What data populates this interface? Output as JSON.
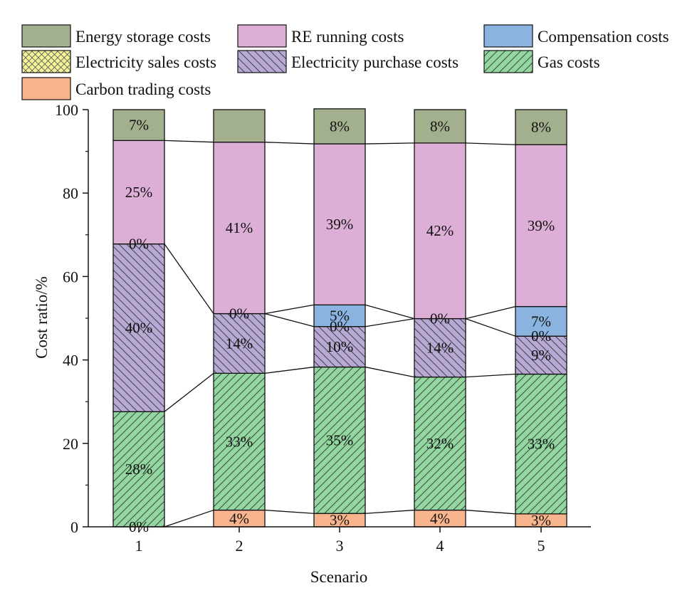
{
  "chart_data": {
    "type": "stacked-bar",
    "xlabel": "Scenario",
    "ylabel": "Cost ratio/%",
    "ylim": [
      0,
      100
    ],
    "yticks": [
      0,
      20,
      40,
      60,
      80,
      100
    ],
    "categories": [
      "1",
      "2",
      "3",
      "4",
      "5"
    ],
    "legend": {
      "placement": "top",
      "order": [
        "Energy storage costs",
        "RE running costs",
        "Compensation costs",
        "Electricity sales costs",
        "Electricity purchase costs",
        "Gas costs",
        "Carbon trading costs"
      ]
    },
    "series": [
      {
        "name": "Carbon trading costs",
        "color": "#F8B48C",
        "pattern": "none",
        "values": [
          0,
          4,
          3.2,
          4,
          3.1
        ],
        "labels": [
          "0%",
          "4%",
          "3%",
          "4%",
          "3%"
        ]
      },
      {
        "name": "Gas costs",
        "color": "#92D7A0",
        "pattern": "forward-hatch",
        "values": [
          27.6,
          32.8,
          35.1,
          31.9,
          33.5
        ],
        "labels": [
          "28%",
          "33%",
          "35%",
          "32%",
          "33%"
        ]
      },
      {
        "name": "Electricity purchase costs",
        "color": "#B7A8D4",
        "pattern": "back-hatch",
        "values": [
          40.2,
          14.3,
          9.7,
          14,
          9.1
        ],
        "labels": [
          "40%",
          "14%",
          "10%",
          "14%",
          "9%"
        ]
      },
      {
        "name": "Electricity sales costs",
        "color": "#F6F59A",
        "pattern": "crosshatch",
        "values": [
          0,
          0,
          0,
          0,
          0
        ],
        "labels": [
          "0%",
          "0%",
          "0%",
          "0%",
          "0%"
        ]
      },
      {
        "name": "Compensation costs",
        "color": "#8BB3E0",
        "pattern": "none",
        "values": [
          0,
          0,
          5.2,
          0,
          7.1
        ],
        "labels": [
          "",
          "",
          "5%",
          "",
          "7%"
        ]
      },
      {
        "name": "RE running costs",
        "color": "#DDAED6",
        "pattern": "none",
        "values": [
          24.8,
          41.1,
          38.6,
          42.1,
          38.8
        ],
        "labels": [
          "25%",
          "41%",
          "39%",
          "42%",
          "39%"
        ]
      },
      {
        "name": "Energy storage costs",
        "color": "#A2B08D",
        "pattern": "none",
        "values": [
          7.4,
          7.8,
          8.4,
          8,
          8.4
        ],
        "labels": [
          "7%",
          "",
          "8%",
          "8%",
          "8%"
        ]
      }
    ]
  }
}
